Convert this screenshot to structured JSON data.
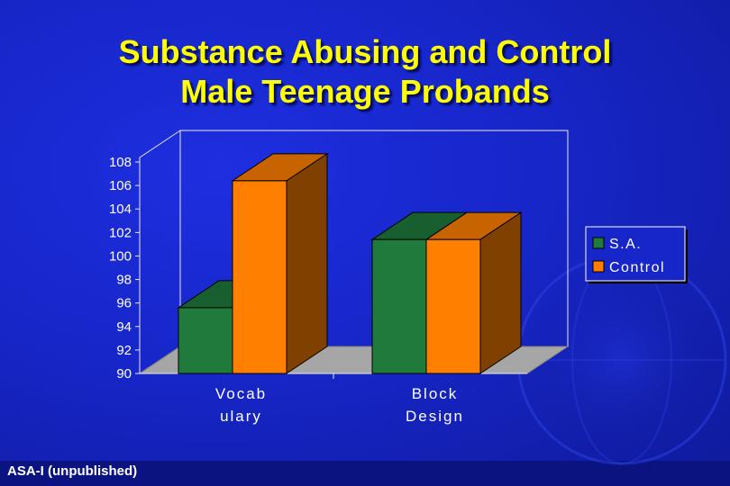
{
  "slide": {
    "title_line1": "Substance Abusing and Control",
    "title_line2": "Male Teenage Probands",
    "source_note": "ASA-I (unpublished)"
  },
  "colors": {
    "background": "#1726c8",
    "title": "#ffff00",
    "sa_series": "#1f7a3c",
    "control_series": "#ff8000"
  },
  "chart_data": {
    "type": "bar",
    "style": "3d-clustered",
    "categories": [
      {
        "line1": "Vocab",
        "line2": "ulary"
      },
      {
        "line1": "Block",
        "line2": "Design"
      }
    ],
    "series": [
      {
        "name": "S.A.",
        "values": [
          95.6,
          101.4
        ],
        "color": "#1f7a3c"
      },
      {
        "name": "Control",
        "values": [
          106.4,
          101.4
        ],
        "color": "#ff8000"
      }
    ],
    "yticks": [
      "90",
      "92",
      "94",
      "96",
      "98",
      "100",
      "102",
      "104",
      "106",
      "108"
    ],
    "ylim": [
      90,
      108
    ],
    "grid": false,
    "legend_position": "right"
  }
}
